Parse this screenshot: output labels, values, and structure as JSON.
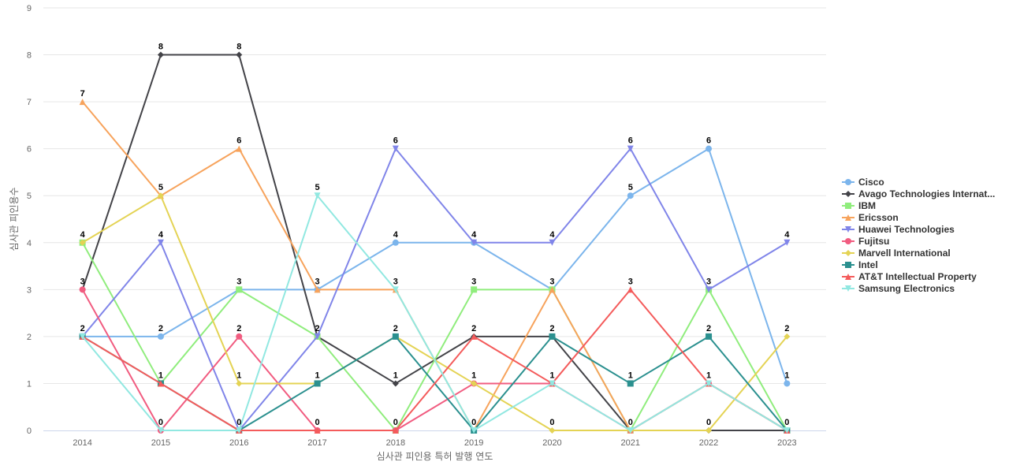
{
  "chart_data": {
    "type": "line",
    "title": "",
    "xlabel": "심사관 피인용 특허 발행 연도",
    "ylabel": "심사관 피인용수",
    "ylim": [
      0,
      9
    ],
    "yticks": [
      0,
      1,
      2,
      3,
      4,
      5,
      6,
      7,
      8,
      9
    ],
    "grid": true,
    "legend_position": "right",
    "categories": [
      "2014",
      "2015",
      "2016",
      "2017",
      "2018",
      "2019",
      "2020",
      "2021",
      "2022",
      "2023"
    ],
    "series": [
      {
        "name": "Cisco",
        "legend_label": "Cisco",
        "color": "#7cb5ec",
        "marker": "circle",
        "values": [
          2,
          2,
          3,
          3,
          4,
          4,
          3,
          5,
          6,
          1
        ]
      },
      {
        "name": "Avago Technologies International",
        "legend_label": "Avago Technologies Internat...",
        "color": "#434348",
        "marker": "diamond",
        "values": [
          3,
          8,
          8,
          2,
          1,
          2,
          2,
          0,
          0,
          0
        ]
      },
      {
        "name": "IBM",
        "legend_label": "IBM",
        "color": "#90ed7d",
        "marker": "square",
        "values": [
          4,
          1,
          3,
          2,
          0,
          3,
          3,
          0,
          3,
          0
        ]
      },
      {
        "name": "Ericsson",
        "legend_label": "Ericsson",
        "color": "#f7a35c",
        "marker": "triangle",
        "values": [
          7,
          5,
          6,
          3,
          3,
          0,
          3,
          0,
          1,
          0
        ]
      },
      {
        "name": "Huawei Technologies",
        "legend_label": "Huawei Technologies",
        "color": "#8085e9",
        "marker": "triangle-down",
        "values": [
          2,
          4,
          0,
          2,
          6,
          4,
          4,
          6,
          3,
          4
        ]
      },
      {
        "name": "Fujitsu",
        "legend_label": "Fujitsu",
        "color": "#f15c80",
        "marker": "circle",
        "values": [
          3,
          0,
          2,
          0,
          0,
          1,
          1,
          0,
          1,
          0
        ]
      },
      {
        "name": "Marvell International",
        "legend_label": "Marvell International",
        "color": "#e4d354",
        "marker": "diamond",
        "values": [
          4,
          5,
          1,
          1,
          2,
          1,
          0,
          0,
          0,
          2
        ]
      },
      {
        "name": "Intel",
        "legend_label": "Intel",
        "color": "#2b908f",
        "marker": "square",
        "values": [
          2,
          1,
          0,
          1,
          2,
          0,
          2,
          1,
          2,
          0
        ]
      },
      {
        "name": "AT&T Intellectual Property",
        "legend_label": "AT&T Intellectual Property",
        "color": "#f45b5b",
        "marker": "triangle",
        "values": [
          2,
          1,
          0,
          0,
          0,
          2,
          1,
          3,
          1,
          0
        ]
      },
      {
        "name": "Samsung Electronics",
        "legend_label": "Samsung Electronics",
        "color": "#91e8e1",
        "marker": "triangle-down",
        "values": [
          2,
          0,
          0,
          5,
          3,
          0,
          1,
          0,
          1,
          0
        ]
      }
    ],
    "data_labels": [
      {
        "x": "2014",
        "value": 7
      },
      {
        "x": "2014",
        "value": 4
      },
      {
        "x": "2014",
        "value": 3
      },
      {
        "x": "2014",
        "value": 2
      },
      {
        "x": "2015",
        "value": 8
      },
      {
        "x": "2015",
        "value": 5
      },
      {
        "x": "2015",
        "value": 4
      },
      {
        "x": "2015",
        "value": 2
      },
      {
        "x": "2015",
        "value": 1
      },
      {
        "x": "2015",
        "value": 0
      },
      {
        "x": "2016",
        "value": 8
      },
      {
        "x": "2016",
        "value": 6
      },
      {
        "x": "2016",
        "value": 3
      },
      {
        "x": "2016",
        "value": 2
      },
      {
        "x": "2016",
        "value": 1
      },
      {
        "x": "2016",
        "value": 0
      },
      {
        "x": "2017",
        "value": 5
      },
      {
        "x": "2017",
        "value": 3
      },
      {
        "x": "2017",
        "value": 2
      },
      {
        "x": "2017",
        "value": 1
      },
      {
        "x": "2017",
        "value": 0
      },
      {
        "x": "2018",
        "value": 6
      },
      {
        "x": "2018",
        "value": 4
      },
      {
        "x": "2018",
        "value": 3
      },
      {
        "x": "2018",
        "value": 2
      },
      {
        "x": "2018",
        "value": 1
      },
      {
        "x": "2018",
        "value": 0
      },
      {
        "x": "2019",
        "value": 4
      },
      {
        "x": "2019",
        "value": 3
      },
      {
        "x": "2019",
        "value": 2
      },
      {
        "x": "2019",
        "value": 1
      },
      {
        "x": "2019",
        "value": 0
      },
      {
        "x": "2020",
        "value": 4
      },
      {
        "x": "2020",
        "value": 3
      },
      {
        "x": "2020",
        "value": 2
      },
      {
        "x": "2020",
        "value": 1
      },
      {
        "x": "2020",
        "value": 0
      },
      {
        "x": "2021",
        "value": 6
      },
      {
        "x": "2021",
        "value": 5
      },
      {
        "x": "2021",
        "value": 3
      },
      {
        "x": "2021",
        "value": 1
      },
      {
        "x": "2021",
        "value": 0
      },
      {
        "x": "2022",
        "value": 6
      },
      {
        "x": "2022",
        "value": 3
      },
      {
        "x": "2022",
        "value": 2
      },
      {
        "x": "2022",
        "value": 1
      },
      {
        "x": "2022",
        "value": 0
      },
      {
        "x": "2023",
        "value": 4
      },
      {
        "x": "2023",
        "value": 2
      },
      {
        "x": "2023",
        "value": 1
      },
      {
        "x": "2023",
        "value": 0
      }
    ]
  }
}
